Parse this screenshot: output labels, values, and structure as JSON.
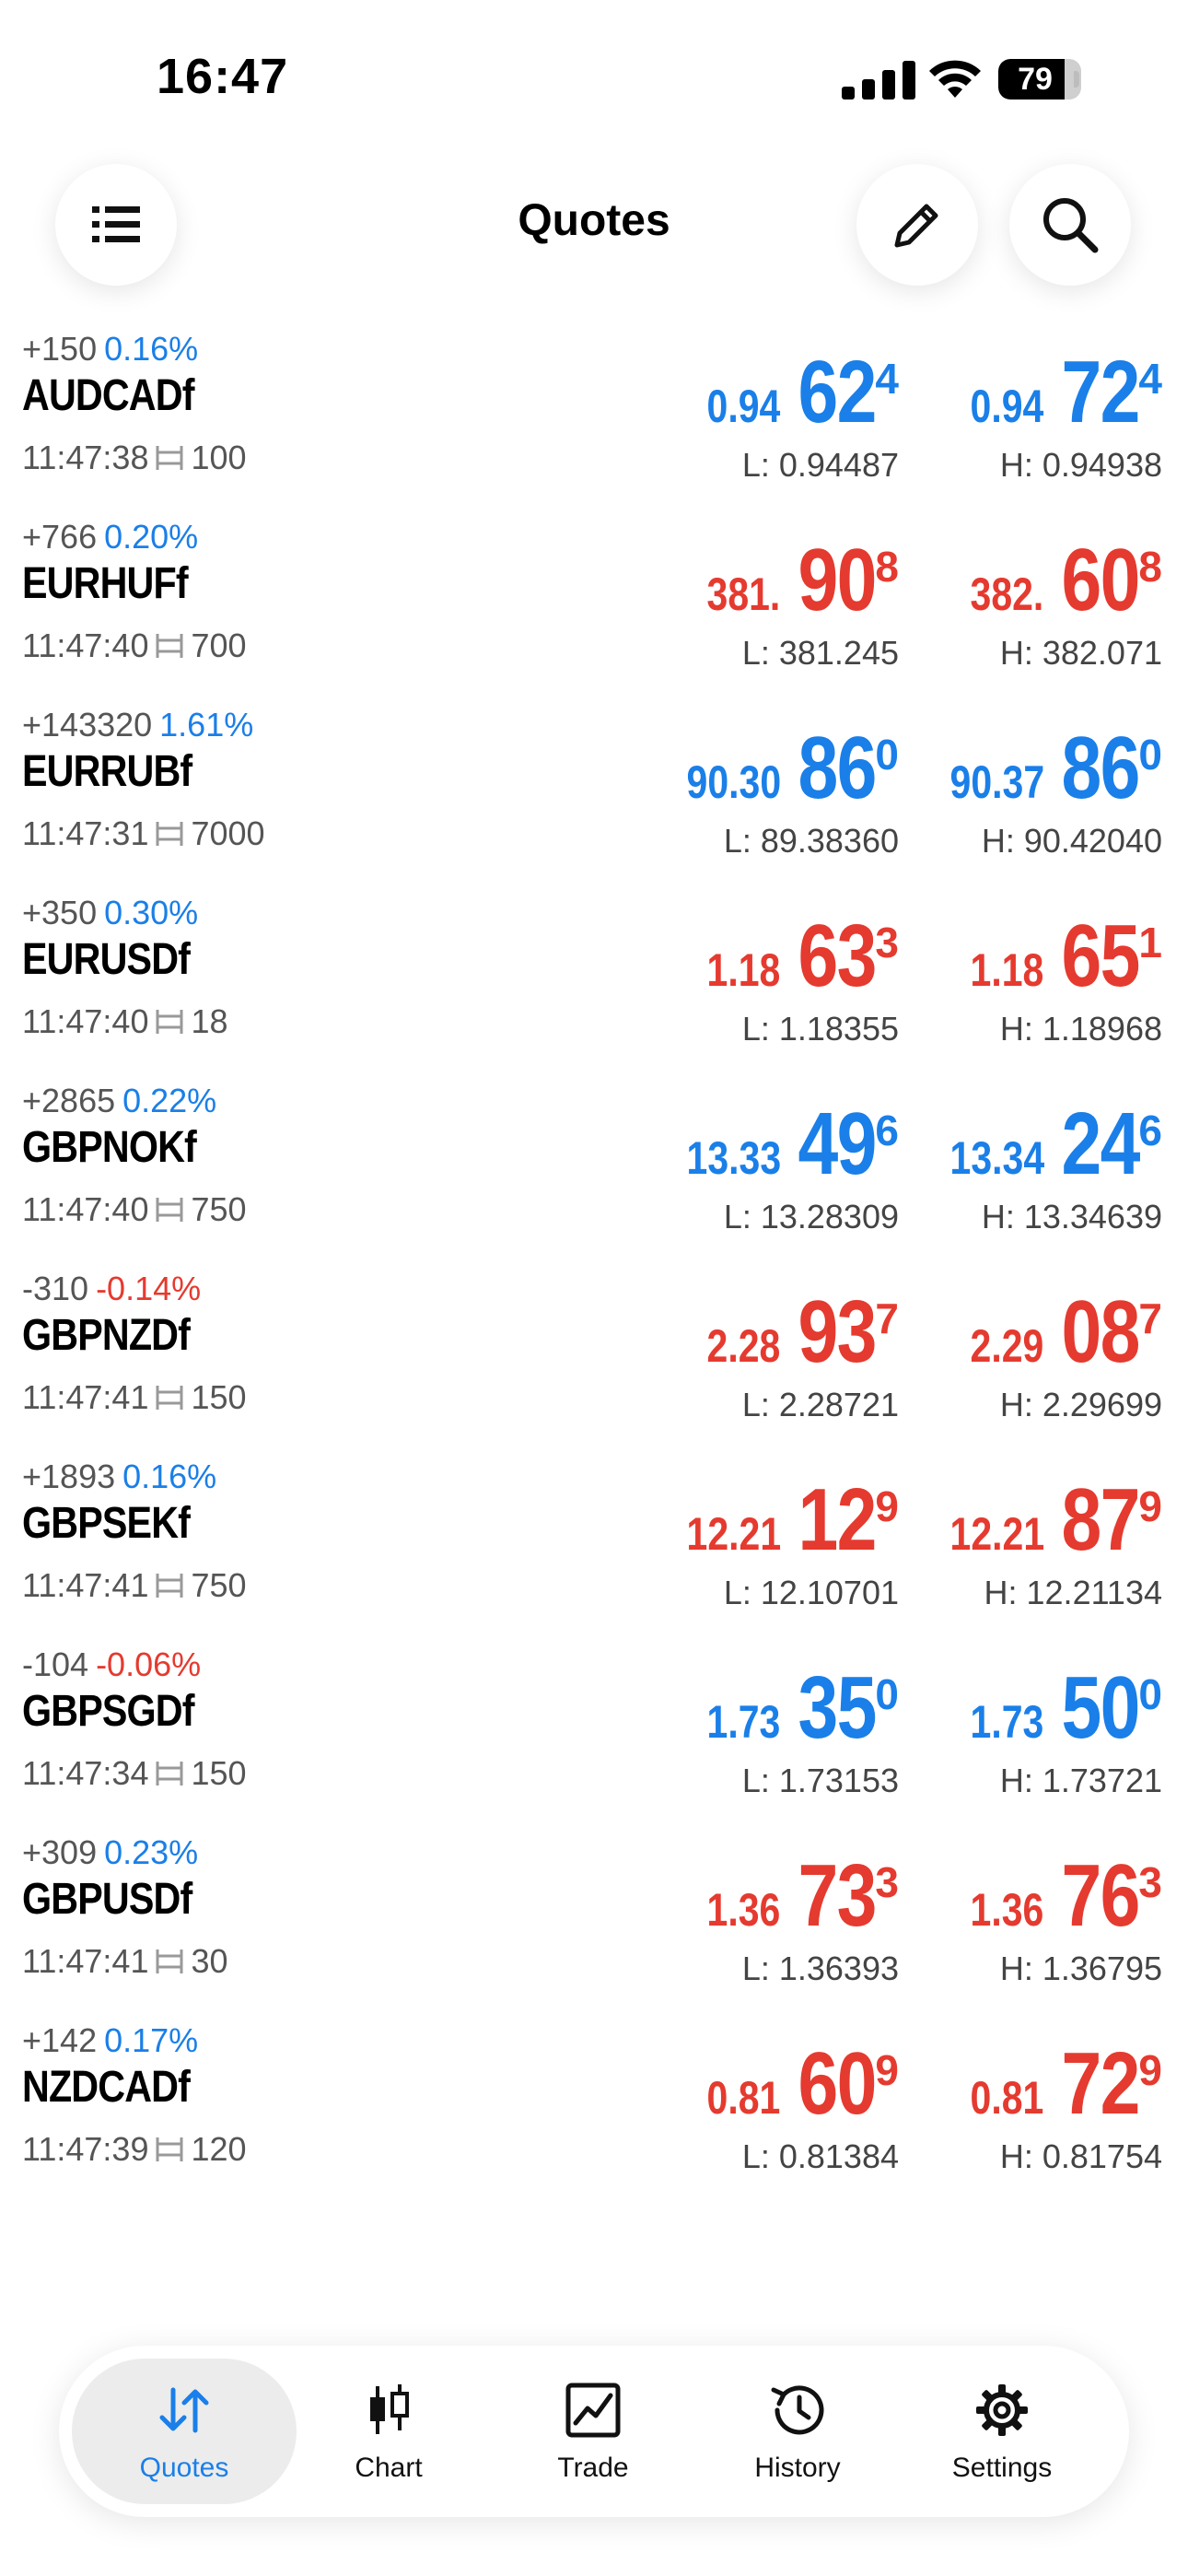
{
  "status_bar": {
    "time": "16:47",
    "battery": "79"
  },
  "header": {
    "title": "Quotes"
  },
  "quotes": [
    {
      "symbol": "AUDCADf",
      "change": "+150",
      "change_pct": "0.16%",
      "dir": "up",
      "time": "11:47:38",
      "spread": "100",
      "bid": {
        "prefix": "0.94",
        "big": "62",
        "sup": "4"
      },
      "ask": {
        "prefix": "0.94",
        "big": "72",
        "sup": "4"
      },
      "low": "L: 0.94487",
      "high": "H: 0.94938",
      "price_color": "blue"
    },
    {
      "symbol": "EURHUFf",
      "change": "+766",
      "change_pct": "0.20%",
      "dir": "up",
      "time": "11:47:40",
      "spread": "700",
      "bid": {
        "prefix": "381.",
        "big": "90",
        "sup": "8"
      },
      "ask": {
        "prefix": "382.",
        "big": "60",
        "sup": "8"
      },
      "low": "L: 381.245",
      "high": "H: 382.071",
      "price_color": "red"
    },
    {
      "symbol": "EURRUBf",
      "change": "+143320",
      "change_pct": "1.61%",
      "dir": "up",
      "time": "11:47:31",
      "spread": "7000",
      "bid": {
        "prefix": "90.30",
        "big": "86",
        "sup": "0"
      },
      "ask": {
        "prefix": "90.37",
        "big": "86",
        "sup": "0"
      },
      "low": "L: 89.38360",
      "high": "H: 90.42040",
      "price_color": "blue"
    },
    {
      "symbol": "EURUSDf",
      "change": "+350",
      "change_pct": "0.30%",
      "dir": "up",
      "time": "11:47:40",
      "spread": "18",
      "bid": {
        "prefix": "1.18",
        "big": "63",
        "sup": "3"
      },
      "ask": {
        "prefix": "1.18",
        "big": "65",
        "sup": "1"
      },
      "low": "L: 1.18355",
      "high": "H: 1.18968",
      "price_color": "red"
    },
    {
      "symbol": "GBPNOKf",
      "change": "+2865",
      "change_pct": "0.22%",
      "dir": "up",
      "time": "11:47:40",
      "spread": "750",
      "bid": {
        "prefix": "13.33",
        "big": "49",
        "sup": "6"
      },
      "ask": {
        "prefix": "13.34",
        "big": "24",
        "sup": "6"
      },
      "low": "L: 13.28309",
      "high": "H: 13.34639",
      "price_color": "blue"
    },
    {
      "symbol": "GBPNZDf",
      "change": "-310",
      "change_pct": "-0.14%",
      "dir": "down",
      "time": "11:47:41",
      "spread": "150",
      "bid": {
        "prefix": "2.28",
        "big": "93",
        "sup": "7"
      },
      "ask": {
        "prefix": "2.29",
        "big": "08",
        "sup": "7"
      },
      "low": "L: 2.28721",
      "high": "H: 2.29699",
      "price_color": "red"
    },
    {
      "symbol": "GBPSEKf",
      "change": "+1893",
      "change_pct": "0.16%",
      "dir": "up",
      "time": "11:47:41",
      "spread": "750",
      "bid": {
        "prefix": "12.21",
        "big": "12",
        "sup": "9"
      },
      "ask": {
        "prefix": "12.21",
        "big": "87",
        "sup": "9"
      },
      "low": "L: 12.10701",
      "high": "H: 12.21134",
      "price_color": "red"
    },
    {
      "symbol": "GBPSGDf",
      "change": "-104",
      "change_pct": "-0.06%",
      "dir": "down",
      "time": "11:47:34",
      "spread": "150",
      "bid": {
        "prefix": "1.73",
        "big": "35",
        "sup": "0"
      },
      "ask": {
        "prefix": "1.73",
        "big": "50",
        "sup": "0"
      },
      "low": "L: 1.73153",
      "high": "H: 1.73721",
      "price_color": "blue"
    },
    {
      "symbol": "GBPUSDf",
      "change": "+309",
      "change_pct": "0.23%",
      "dir": "up",
      "time": "11:47:41",
      "spread": "30",
      "bid": {
        "prefix": "1.36",
        "big": "73",
        "sup": "3"
      },
      "ask": {
        "prefix": "1.36",
        "big": "76",
        "sup": "3"
      },
      "low": "L: 1.36393",
      "high": "H: 1.36795",
      "price_color": "red"
    },
    {
      "symbol": "NZDCADf",
      "change": "+142",
      "change_pct": "0.17%",
      "dir": "up",
      "time": "11:47:39",
      "spread": "120",
      "bid": {
        "prefix": "0.81",
        "big": "60",
        "sup": "9"
      },
      "ask": {
        "prefix": "0.81",
        "big": "72",
        "sup": "9"
      },
      "low": "L: 0.81384",
      "high": "H: 0.81754",
      "price_color": "red"
    }
  ],
  "colors": {
    "blue": "#1a7fe8",
    "red": "#e53a2f",
    "gray": "#555555"
  },
  "tab_bar": {
    "tabs": [
      {
        "label": "Quotes",
        "icon": "quotes-arrows-icon",
        "active": true
      },
      {
        "label": "Chart",
        "icon": "candlestick-chart-icon",
        "active": false
      },
      {
        "label": "Trade",
        "icon": "trade-chart-icon",
        "active": false
      },
      {
        "label": "History",
        "icon": "history-clock-icon",
        "active": false
      },
      {
        "label": "Settings",
        "icon": "gear-icon",
        "active": false
      }
    ]
  }
}
